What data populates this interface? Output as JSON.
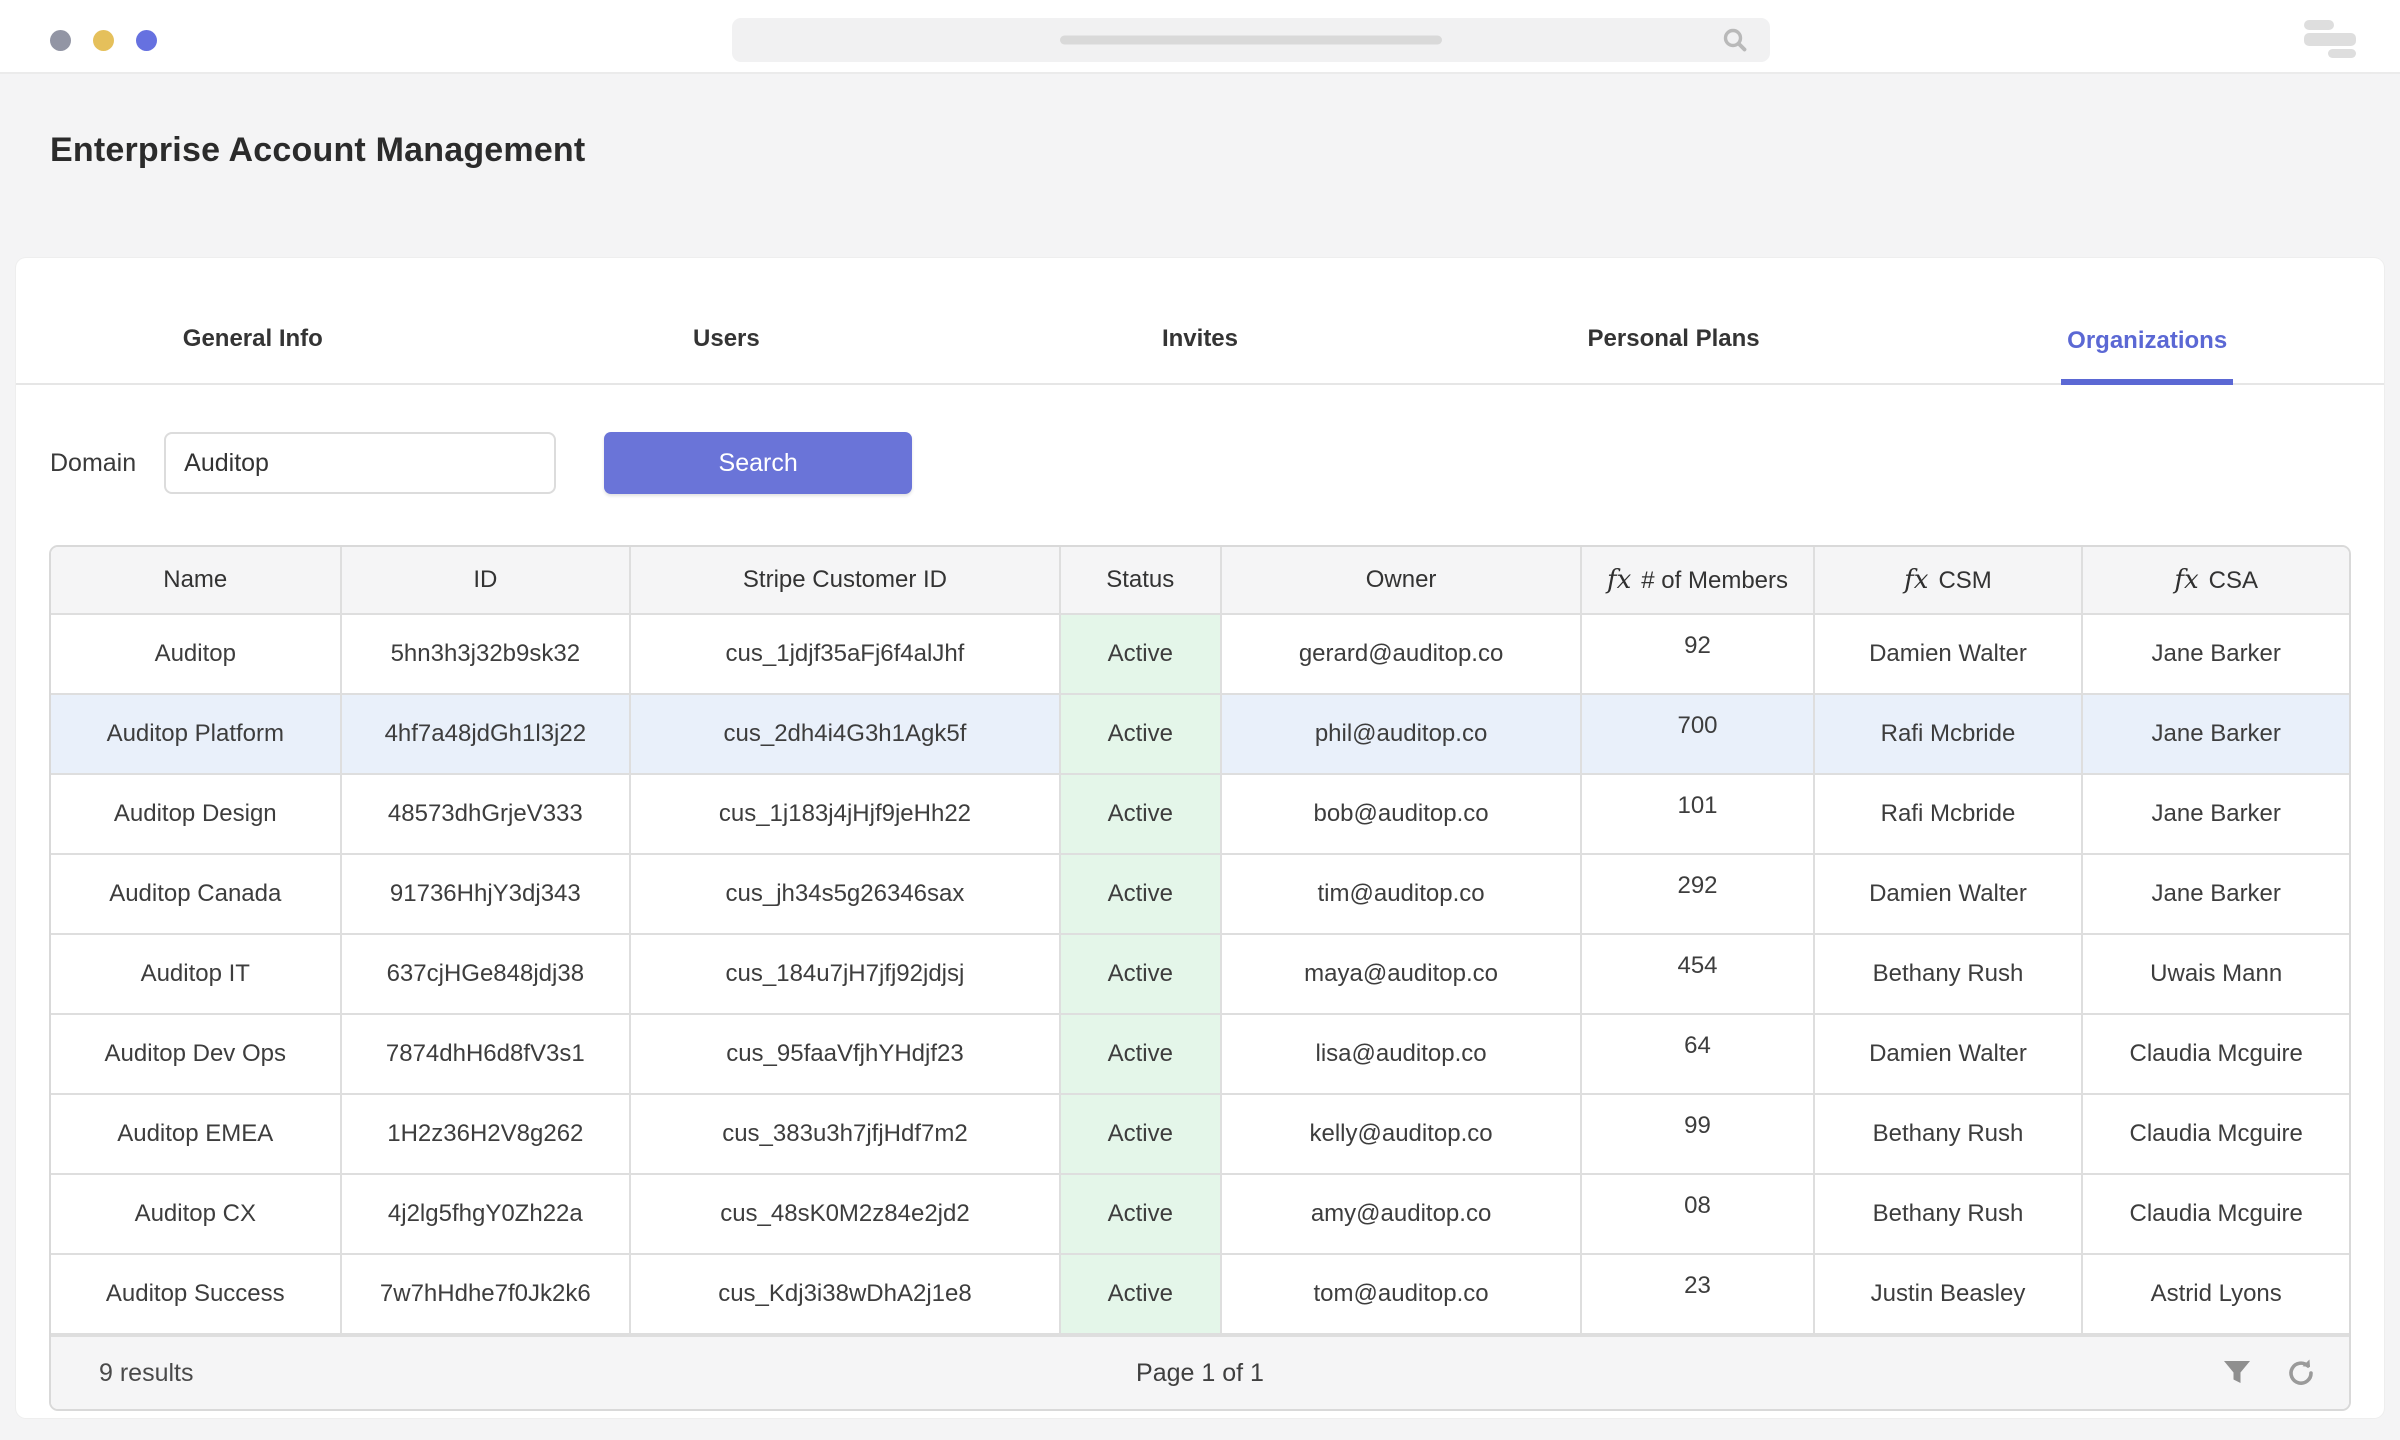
{
  "chrome": {
    "window_dot_colors": [
      "#9295a4",
      "#e5c05b",
      "#6671e0"
    ],
    "search": {
      "placeholder": ""
    }
  },
  "page": {
    "title": "Enterprise Account Management"
  },
  "tabs": [
    {
      "label": "General Info",
      "active": false
    },
    {
      "label": "Users",
      "active": false
    },
    {
      "label": "Invites",
      "active": false
    },
    {
      "label": "Personal Plans",
      "active": false
    },
    {
      "label": "Organizations",
      "active": true
    }
  ],
  "filter": {
    "label": "Domain",
    "value": "Auditop",
    "button_label": "Search"
  },
  "table": {
    "fx_glyph": "fx",
    "columns": [
      {
        "label": "Name",
        "fx": false
      },
      {
        "label": "ID",
        "fx": false
      },
      {
        "label": "Stripe Customer ID",
        "fx": false
      },
      {
        "label": "Status",
        "fx": false
      },
      {
        "label": "Owner",
        "fx": false
      },
      {
        "label": "# of Members",
        "fx": true
      },
      {
        "label": "CSM",
        "fx": true
      },
      {
        "label": "CSA",
        "fx": true
      }
    ],
    "rows": [
      {
        "name": "Auditop",
        "id": "5hn3h3j32b9sk32",
        "stripe_customer_id": "cus_1jdjf35aFj6f4alJhf",
        "status": "Active",
        "owner": "gerard@auditop.co",
        "members": "92",
        "csm": "Damien Walter",
        "csa": "Jane Barker",
        "highlighted": false
      },
      {
        "name": "Auditop Platform",
        "id": "4hf7a48jdGh1l3j22",
        "stripe_customer_id": "cus_2dh4i4G3h1Agk5f",
        "status": "Active",
        "owner": "phil@auditop.co",
        "members": "700",
        "csm": "Rafi Mcbride",
        "csa": "Jane Barker",
        "highlighted": true
      },
      {
        "name": "Auditop Design",
        "id": "48573dhGrjeV333",
        "stripe_customer_id": "cus_1j183j4jHjf9jeHh22",
        "status": "Active",
        "owner": "bob@auditop.co",
        "members": "101",
        "csm": "Rafi Mcbride",
        "csa": "Jane Barker",
        "highlighted": false
      },
      {
        "name": "Auditop Canada",
        "id": "91736HhjY3dj343",
        "stripe_customer_id": "cus_jh34s5g26346sax",
        "status": "Active",
        "owner": "tim@auditop.co",
        "members": "292",
        "csm": "Damien Walter",
        "csa": "Jane Barker",
        "highlighted": false
      },
      {
        "name": "Auditop IT",
        "id": "637cjHGe848jdj38",
        "stripe_customer_id": "cus_184u7jH7jfj92jdjsj",
        "status": "Active",
        "owner": "maya@auditop.co",
        "members": "454",
        "csm": "Bethany Rush",
        "csa": "Uwais Mann",
        "highlighted": false
      },
      {
        "name": "Auditop Dev Ops",
        "id": "7874dhH6d8fV3s1",
        "stripe_customer_id": "cus_95faaVfjhYHdjf23",
        "status": "Active",
        "owner": "lisa@auditop.co",
        "members": "64",
        "csm": "Damien Walter",
        "csa": "Claudia Mcguire",
        "highlighted": false
      },
      {
        "name": "Auditop EMEA",
        "id": "1H2z36H2V8g262",
        "stripe_customer_id": "cus_383u3h7jfjHdf7m2",
        "status": "Active",
        "owner": "kelly@auditop.co",
        "members": "99",
        "csm": "Bethany Rush",
        "csa": "Claudia Mcguire",
        "highlighted": false
      },
      {
        "name": "Auditop CX",
        "id": "4j2lg5fhgY0Zh22a",
        "stripe_customer_id": "cus_48sK0M2z84e2jd2",
        "status": "Active",
        "owner": "amy@auditop.co",
        "members": "08",
        "csm": "Bethany Rush",
        "csa": "Claudia Mcguire",
        "highlighted": false
      },
      {
        "name": "Auditop Success",
        "id": "7w7hHdhe7f0Jk2k6",
        "stripe_customer_id": "cus_Kdj3i38wDhA2j1e8",
        "status": "Active",
        "owner": "tom@auditop.co",
        "members": "23",
        "csm": "Justin Beasley",
        "csa": "Astrid Lyons",
        "highlighted": false
      }
    ]
  },
  "footer": {
    "results": "9 results",
    "page_label": "Page 1 of 1"
  },
  "colors": {
    "accent": "#5b68d4",
    "button": "#6a74d8",
    "status_bg": "#e4f6e9",
    "highlight_row_bg": "#e9f0fa",
    "page_bg": "#f4f4f5"
  }
}
